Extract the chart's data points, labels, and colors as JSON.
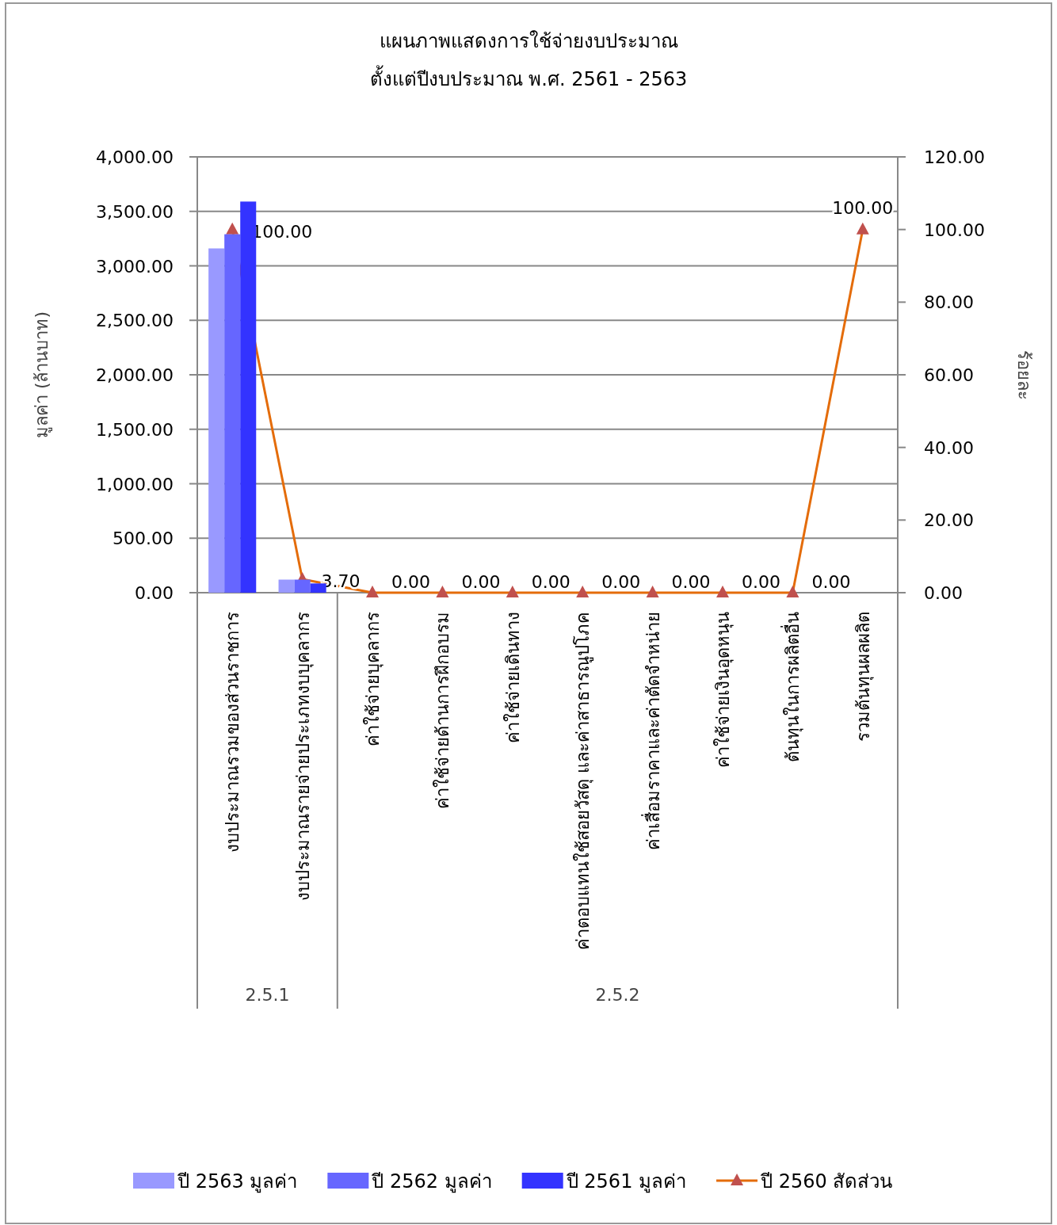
{
  "chart_data": {
    "type": "bar",
    "title": "แผนภาพแสดงการใช้จ่ายงบประมาณ\nตั้งแต่ปีงบประมาณ พ.ศ. 2561  - 2563",
    "ylabel": "มูลค่า (ล้านบาท)",
    "y2label": "ร้อยละ",
    "categories": [
      "งบประมาณรวมของส่วนราชการ",
      "งบประมาณรายจ่ายประเภทงบบุคลากร",
      "ค่าใช้จ่ายบุคลากร",
      "ค่าใช้จ่ายด้านการฝึกอบรม",
      "ค่าใช้จ่ายเดินทาง",
      "ค่าตอบแทนใช้สอยวัสดุ  และค่าสาธารณูปโภค",
      "ค่าเสื่อมราคาและค่าตัดจำหน่าย",
      "ค่าใช้จ่ายเงินอุดหนุน",
      "ต้นทุนในการผลิตอื่น",
      "รวมต้นทุนผลผลิต"
    ],
    "series": [
      {
        "name": "ปี 2563 มูลค่า",
        "color": "#9999ff",
        "values": [
          3160,
          120,
          null,
          null,
          null,
          null,
          null,
          null,
          null,
          null
        ]
      },
      {
        "name": "ปี 2562 มูลค่า",
        "color": "#6666ff",
        "values": [
          3290,
          120,
          null,
          null,
          null,
          null,
          null,
          null,
          null,
          null
        ]
      },
      {
        "name": "ปี 2561 มูลค่า",
        "color": "#3333ff",
        "values": [
          3590,
          85,
          null,
          null,
          null,
          null,
          null,
          null,
          null,
          null
        ]
      },
      {
        "name": "ปี 2560 สัดส่วน",
        "type": "line",
        "axis": "y2",
        "color": "#e46c0a",
        "marker": "triangle",
        "colors": [
          "#c0504d",
          "#c0504d",
          "#c0504d",
          "#c0504d",
          "#c0504d",
          "#c0504d",
          "#c0504d",
          "#c0504d",
          "#c0504d",
          "#c0504d"
        ],
        "values": [
          100,
          3.7,
          0,
          0,
          0,
          0,
          0,
          0,
          0,
          100
        ],
        "value_labels": [
          "100.00",
          "3.70",
          "0.00",
          "0.00",
          "0.00",
          "0.00",
          "0.00",
          "0.00",
          "0.00",
          "100.00"
        ]
      }
    ],
    "ylim": [
      0,
      4000
    ],
    "yticks": [
      {
        "value": 0,
        "label": "0.00"
      },
      {
        "value": 500,
        "label": "500.00"
      },
      {
        "value": 1000,
        "label": "1,000.00"
      },
      {
        "value": 1500,
        "label": "1,500.00"
      },
      {
        "value": 2000,
        "label": "2,000.00"
      },
      {
        "value": 2500,
        "label": "2,500.00"
      },
      {
        "value": 3000,
        "label": "3,000.00"
      },
      {
        "value": 3500,
        "label": "3,500.00"
      },
      {
        "value": 4000,
        "label": "4,000.00"
      }
    ],
    "y2lim": [
      0,
      120
    ],
    "y2ticks": [
      {
        "value": 0,
        "label": "0.00"
      },
      {
        "value": 20,
        "label": "20.00"
      },
      {
        "value": 40,
        "label": "40.00"
      },
      {
        "value": 60,
        "label": "60.00"
      },
      {
        "value": 80,
        "label": "80.00"
      },
      {
        "value": 100,
        "label": "100.00"
      },
      {
        "value": 120,
        "label": "120.00"
      }
    ],
    "grid": "y",
    "legend": "bottom",
    "annotations": [
      "2.5.1",
      "2.5.2"
    ]
  }
}
